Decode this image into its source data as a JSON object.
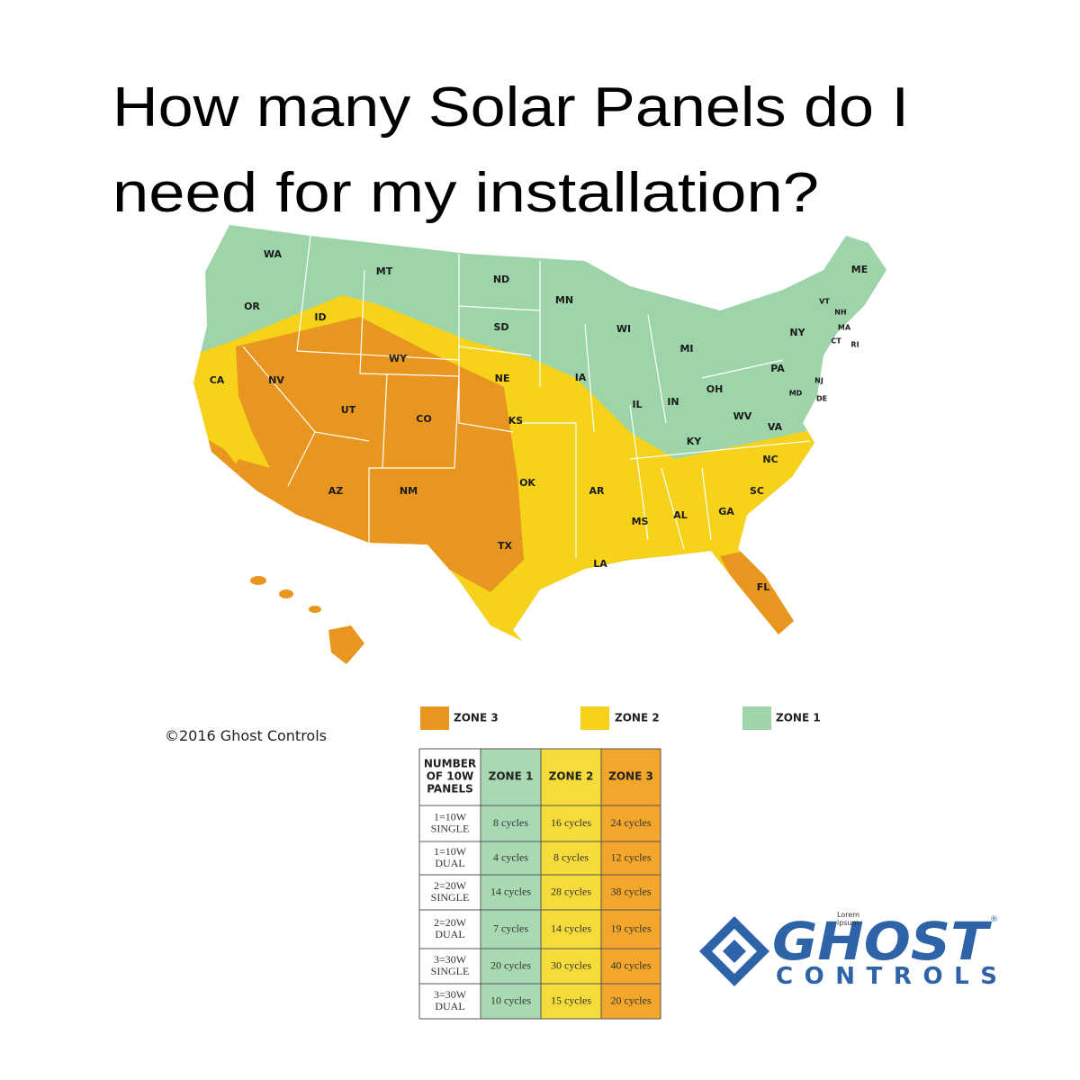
{
  "title": [
    "How many Solar Panels do I",
    "need for my installation?"
  ],
  "map": {
    "states": [
      "WA",
      "MT",
      "ND",
      "MN",
      "ME",
      "OR",
      "ID",
      "SD",
      "WI",
      "VT",
      "NH",
      "MA",
      "CT",
      "RI",
      "NY",
      "MI",
      "WY",
      "PA",
      "NJ",
      "CA",
      "NV",
      "NE",
      "IA",
      "MD",
      "DE",
      "OH",
      "IL",
      "IN",
      "UT",
      "CO",
      "KS",
      "WV",
      "VA",
      "KY",
      "NC",
      "OK",
      "AR",
      "SC",
      "AZ",
      "NM",
      "MS",
      "AL",
      "GA",
      "TX",
      "LA",
      "FL"
    ]
  },
  "legend": [
    "ZONE 3",
    "ZONE 2",
    "ZONE 1"
  ],
  "copyright": "©2016 Ghost Controls",
  "table": {
    "header": {
      "panels": [
        "NUMBER",
        "OF 10W",
        "PANELS"
      ],
      "zones": [
        "ZONE 1",
        "ZONE 2",
        "ZONE 3"
      ]
    },
    "rows": [
      {
        "panels": [
          "1=10W",
          "SINGLE"
        ],
        "cells": [
          "8 cycles",
          "16 cycles",
          "24 cycles"
        ]
      },
      {
        "panels": [
          "1=10W",
          "DUAL"
        ],
        "cells": [
          "4 cycles",
          "8 cycles",
          "12 cycles"
        ]
      },
      {
        "panels": [
          "2=20W",
          "SINGLE"
        ],
        "cells": [
          "14 cycles",
          "28 cycles",
          "38 cycles"
        ]
      },
      {
        "panels": [
          "2=20W",
          "DUAL"
        ],
        "cells": [
          "7 cycles",
          "14 cycles",
          "19 cycles"
        ]
      },
      {
        "panels": [
          "3=30W",
          "SINGLE"
        ],
        "cells": [
          "20 cycles",
          "30 cycles",
          "40 cycles"
        ]
      },
      {
        "panels": [
          "3=30W",
          "DUAL"
        ],
        "cells": [
          "10 cycles",
          "15 cycles",
          "20 cycles"
        ]
      }
    ]
  },
  "logo": {
    "name": "GHOST",
    "sub": "CONTROLS",
    "mark": "®",
    "placeholder": [
      "Lorem",
      "ipsum"
    ]
  }
}
